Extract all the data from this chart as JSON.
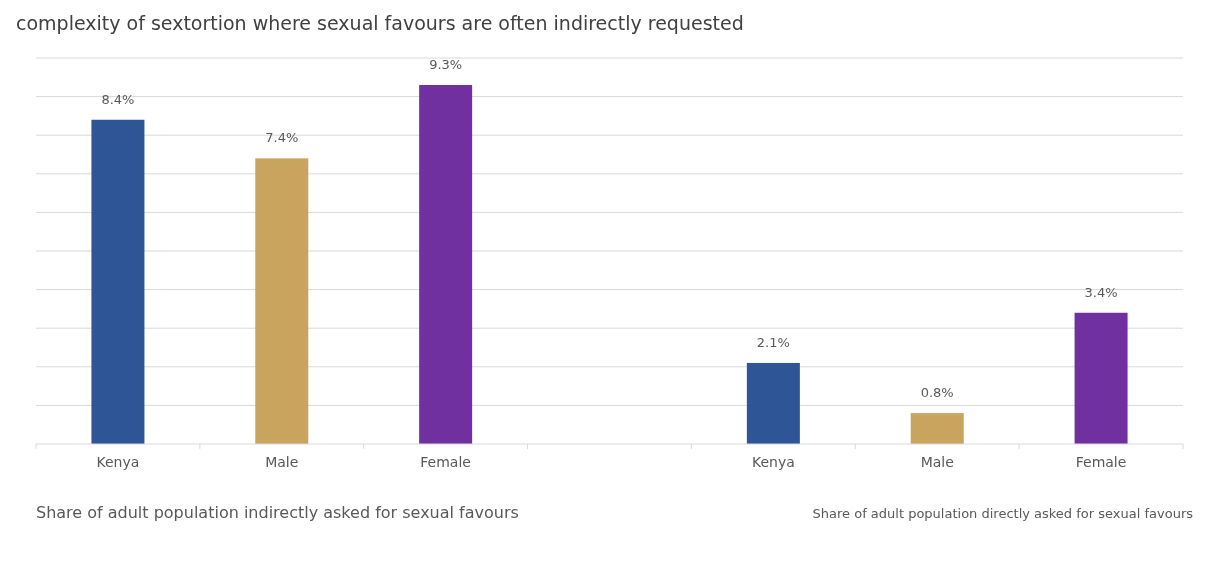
{
  "chart_data": {
    "type": "bar",
    "title": "complexity of sextortion where sexual favours are often indirectly requested",
    "categories": [
      "Kenya",
      "Male",
      "Female",
      null,
      "Kenya",
      "Male",
      "Female"
    ],
    "values": [
      8.4,
      7.4,
      9.3,
      null,
      2.1,
      0.8,
      3.4
    ],
    "colors": [
      "#2e5596",
      "#c9a45e",
      "#7030a0",
      null,
      "#2e5596",
      "#c9a45e",
      "#7030a0"
    ],
    "value_labels": [
      "8.4%",
      "7.4%",
      "9.3%",
      null,
      "2.1%",
      "0.8%",
      "3.4%"
    ],
    "ylim": [
      0,
      10
    ],
    "yticks": [
      {
        "value": 0,
        "label": null
      },
      {
        "value": 1,
        "label": null
      },
      {
        "value": 2,
        "label": null
      },
      {
        "value": 3,
        "label": null
      },
      {
        "value": 4,
        "label": null
      },
      {
        "value": 5,
        "label": null
      },
      {
        "value": 6,
        "label": null
      },
      {
        "value": 7,
        "label": null
      },
      {
        "value": 8,
        "label": null
      },
      {
        "value": 9,
        "label": null
      },
      {
        "value": 10,
        "label": null
      }
    ],
    "grid": "y",
    "tick_labels": "x",
    "annotations": [
      "Share of adult population indirectly asked for sexual favours",
      "Share of adult population directly asked for sexual favours"
    ]
  }
}
